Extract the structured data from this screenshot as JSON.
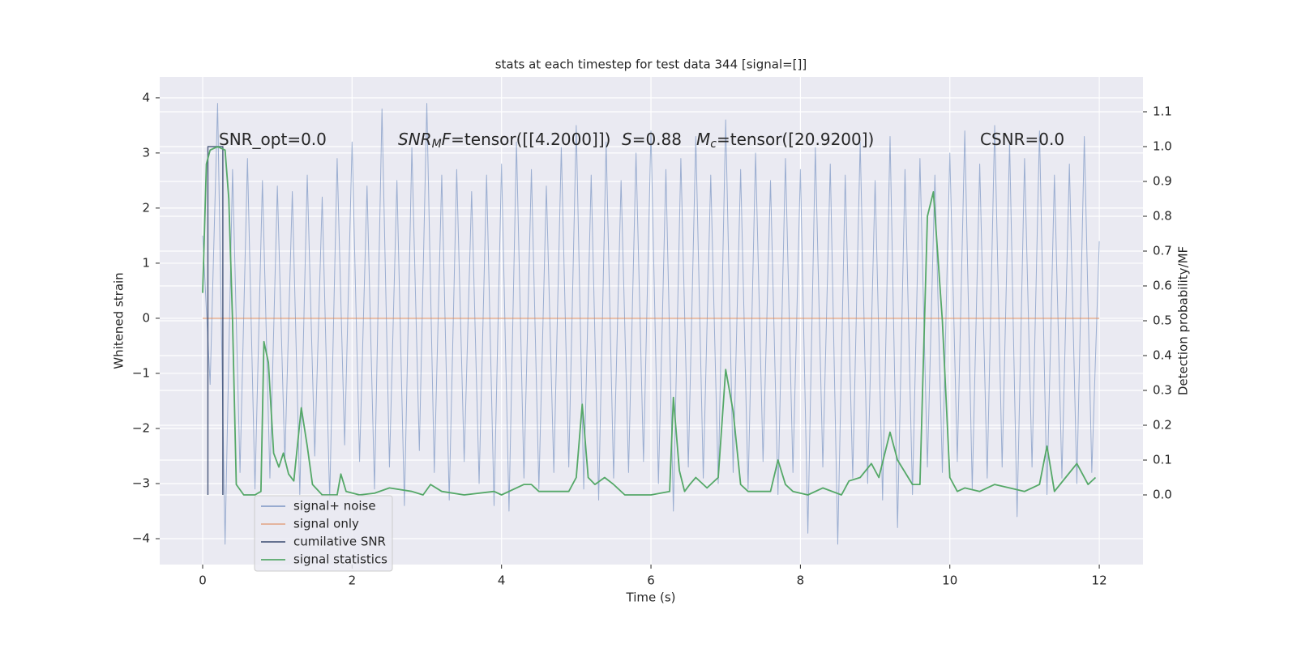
{
  "chart_data": {
    "type": "line",
    "title": "stats at each timestep for test data 344 [signal=[]]",
    "xlabel": "Time (s)",
    "ylabel": "Whitened strain",
    "y2label": "Detection probability/MF",
    "xlim": [
      -0.575,
      12.585
    ],
    "ylim": [
      -4.47,
      4.38
    ],
    "y2lim": [
      -0.2,
      1.2
    ],
    "xticks": [
      0,
      2,
      4,
      6,
      8,
      10,
      12
    ],
    "yticks": [
      {
        "value": -4,
        "label": "−4"
      },
      {
        "value": -3,
        "label": "−3"
      },
      {
        "value": -2,
        "label": "−2"
      },
      {
        "value": -1,
        "label": "−1"
      },
      0,
      1,
      2,
      3,
      4
    ],
    "y2ticks": [
      {
        "value": 0,
        "label": "0.0"
      },
      0.1,
      0.2,
      0.3,
      0.4,
      0.5,
      0.6,
      0.7,
      0.8,
      0.9,
      {
        "value": 1,
        "label": "1.0"
      },
      1.1
    ],
    "grid": true,
    "legend": "lower left",
    "annotations": [
      [
        "SNR_opt=0.0"
      ],
      [
        "SNR",
        "M",
        "F",
        "=tensor([[4.2000]])"
      ],
      [
        "S",
        "=0.88"
      ],
      [
        "M",
        "c",
        "=tensor([20.9200])"
      ],
      [
        "CSNR=0.0"
      ]
    ],
    "series": [
      {
        "name": "signal+ noise",
        "color": "#4c72b0",
        "x": [
          0,
          0.1,
          0.2,
          0.3,
          0.4,
          0.5,
          0.6,
          0.7,
          0.8,
          0.9,
          1,
          1.1,
          1.2,
          1.3,
          1.4,
          1.5,
          1.6,
          1.7,
          1.8,
          1.9,
          2,
          2.1,
          2.2,
          2.3,
          2.4,
          2.5,
          2.6,
          2.7,
          2.8,
          2.9,
          3,
          3.1,
          3.2,
          3.3,
          3.4,
          3.5,
          3.6,
          3.7,
          3.8,
          3.9,
          4,
          4.1,
          4.2,
          4.3,
          4.4,
          4.5,
          4.6,
          4.7,
          4.8,
          4.9,
          5,
          5.1,
          5.2,
          5.3,
          5.4,
          5.5,
          5.6,
          5.7,
          5.8,
          5.9,
          6,
          6.1,
          6.2,
          6.3,
          6.4,
          6.5,
          6.6,
          6.7,
          6.8,
          6.9,
          7,
          7.1,
          7.2,
          7.3,
          7.4,
          7.5,
          7.6,
          7.7,
          7.8,
          7.9,
          8,
          8.1,
          8.2,
          8.3,
          8.4,
          8.5,
          8.6,
          8.7,
          8.8,
          8.9,
          9,
          9.1,
          9.2,
          9.3,
          9.4,
          9.5,
          9.6,
          9.7,
          9.8,
          9.9,
          10,
          10.1,
          10.2,
          10.3,
          10.4,
          10.5,
          10.6,
          10.7,
          10.8,
          10.9,
          11,
          11.1,
          11.2,
          11.3,
          11.4,
          11.5,
          11.6,
          11.7,
          11.8,
          11.9,
          12
        ],
        "values": [
          1.5,
          -1.2,
          3.9,
          -4.1,
          2.7,
          -2.8,
          2.9,
          -3.1,
          2.5,
          -2.9,
          2.4,
          -2.6,
          2.3,
          -3.2,
          2.6,
          -2.5,
          2.2,
          -3.3,
          2.9,
          -2.3,
          3.2,
          -2.6,
          2.4,
          -3.1,
          3.8,
          -2.7,
          2.5,
          -3.4,
          3.1,
          -2.4,
          3.9,
          -2.8,
          2.6,
          -3.3,
          2.7,
          -2.6,
          2.3,
          -3.0,
          2.6,
          -3.4,
          2.8,
          -3.5,
          3.2,
          -2.9,
          2.7,
          -3.1,
          2.4,
          -2.8,
          3.1,
          -2.7,
          3.5,
          -3.1,
          2.6,
          -3.3,
          3.2,
          -2.9,
          2.5,
          -2.8,
          3.0,
          -2.6,
          3.4,
          -3.0,
          2.7,
          -3.5,
          2.9,
          -2.7,
          3.3,
          -2.9,
          2.6,
          -3.0,
          3.6,
          -2.8,
          2.7,
          -3.1,
          3.0,
          -2.6,
          2.5,
          -3.2,
          2.9,
          -2.8,
          2.7,
          -3.9,
          3.1,
          -2.7,
          2.8,
          -4.1,
          2.6,
          -2.9,
          3.2,
          -3.0,
          2.5,
          -3.3,
          3.3,
          -3.8,
          2.7,
          -3.2,
          2.9,
          -2.7,
          2.6,
          -2.8,
          3.0,
          -2.6,
          3.4,
          -3.1,
          2.8,
          -2.9,
          3.5,
          -2.7,
          3.2,
          -3.6,
          2.9,
          -2.7,
          3.4,
          -3.2,
          2.6,
          -2.9,
          2.8,
          -3.0,
          3.3,
          -2.8,
          1.4
        ]
      },
      {
        "name": "signal only",
        "color": "#dd8452",
        "x": [
          0,
          12
        ],
        "values": [
          0,
          0
        ]
      },
      {
        "name": "cumilative SNR",
        "color": "#2c3e66",
        "axis": "y2",
        "x": [
          0.07,
          0.07,
          0.27,
          0.27
        ],
        "values": [
          0,
          1,
          1,
          0
        ]
      },
      {
        "name": "signal statistics",
        "color": "#55a868",
        "axis": "y2",
        "x": [
          0,
          0.05,
          0.1,
          0.2,
          0.3,
          0.35,
          0.4,
          0.45,
          0.55,
          0.7,
          0.78,
          0.82,
          0.88,
          0.95,
          1.02,
          1.08,
          1.15,
          1.22,
          1.32,
          1.4,
          1.47,
          1.6,
          1.8,
          1.85,
          1.92,
          2.1,
          2.3,
          2.5,
          2.8,
          2.95,
          3.05,
          3.2,
          3.5,
          3.9,
          4,
          4.3,
          4.4,
          4.5,
          4.9,
          5,
          5.08,
          5.16,
          5.25,
          5.38,
          5.5,
          5.65,
          6,
          6.25,
          6.3,
          6.38,
          6.45,
          6.52,
          6.6,
          6.75,
          6.9,
          7,
          7.1,
          7.2,
          7.3,
          7.6,
          7.7,
          7.8,
          7.9,
          8.1,
          8.3,
          8.55,
          8.65,
          8.8,
          8.95,
          9.05,
          9.2,
          9.3,
          9.5,
          9.6,
          9.7,
          9.78,
          9.9,
          10,
          10.1,
          10.2,
          10.4,
          10.6,
          10.8,
          11,
          11.2,
          11.3,
          11.4,
          11.55,
          11.7,
          11.85,
          11.95
        ],
        "values": [
          0.58,
          0.95,
          0.99,
          1.0,
          0.99,
          0.85,
          0.5,
          0.03,
          0.0,
          0.0,
          0.01,
          0.44,
          0.38,
          0.12,
          0.08,
          0.12,
          0.06,
          0.04,
          0.25,
          0.14,
          0.03,
          0.0,
          0.0,
          0.06,
          0.01,
          0.0,
          0.005,
          0.02,
          0.01,
          0.0,
          0.03,
          0.01,
          0.0,
          0.01,
          0.0,
          0.03,
          0.03,
          0.01,
          0.01,
          0.05,
          0.26,
          0.05,
          0.03,
          0.05,
          0.03,
          0.0,
          0.0,
          0.01,
          0.28,
          0.07,
          0.01,
          0.03,
          0.05,
          0.02,
          0.05,
          0.36,
          0.24,
          0.03,
          0.01,
          0.01,
          0.1,
          0.03,
          0.01,
          0.0,
          0.02,
          0.0,
          0.04,
          0.05,
          0.09,
          0.05,
          0.18,
          0.1,
          0.03,
          0.03,
          0.8,
          0.87,
          0.5,
          0.05,
          0.01,
          0.02,
          0.01,
          0.03,
          0.02,
          0.01,
          0.03,
          0.14,
          0.01,
          0.05,
          0.09,
          0.03,
          0.05
        ]
      }
    ]
  }
}
